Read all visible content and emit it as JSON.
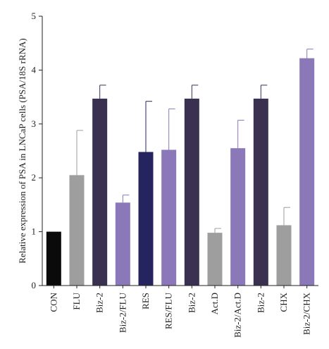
{
  "chart_data": {
    "type": "bar",
    "ylabel": "Relative expression of PSA in LNCaP cells (PSA/18S rRNA)",
    "xlabel": "",
    "ylim": [
      0,
      5
    ],
    "yticks": [
      0,
      1,
      2,
      3,
      4,
      5
    ],
    "categories": [
      "CON",
      "FLU",
      "Biz-2",
      "Biz-2/FLU",
      "RES",
      "RES/FLU",
      "Biz-2",
      "Act.D",
      "Biz-2/Act.D",
      "Biz-2",
      "CHX",
      "Biz-2/CHX"
    ],
    "values": [
      1.0,
      2.05,
      3.47,
      1.54,
      2.48,
      2.52,
      3.47,
      0.98,
      2.55,
      3.47,
      1.12,
      4.22
    ],
    "error_upper": [
      0.0,
      0.83,
      0.25,
      0.14,
      0.94,
      0.76,
      0.25,
      0.08,
      0.52,
      0.25,
      0.33,
      0.17
    ],
    "colors": [
      "#0a0a0a",
      "#9e9e9e",
      "#3a3050",
      "#8a78b8",
      "#26245e",
      "#8a78b8",
      "#3a3050",
      "#9e9e9e",
      "#8a78b8",
      "#3a3050",
      "#9e9e9e",
      "#8a78b8"
    ],
    "grid": false,
    "legend": "none"
  }
}
